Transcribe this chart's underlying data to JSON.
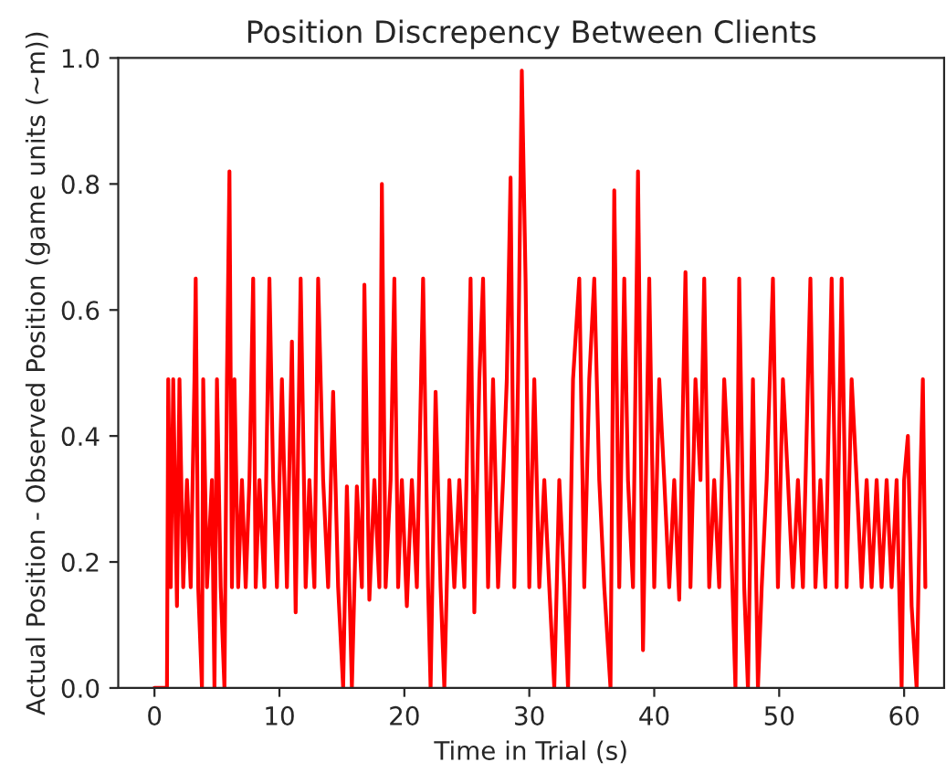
{
  "chart_data": {
    "type": "line",
    "title": "Position Discrepency Between Clients",
    "xlabel": "Time in Trial (s)",
    "ylabel": "Actual Position - Observed Position (game units (~m))",
    "xlim": [
      -2.9,
      63.2
    ],
    "ylim": [
      0,
      1.0
    ],
    "xticks": [
      0,
      10,
      20,
      30,
      40,
      50,
      60
    ],
    "yticks": [
      {
        "value": 0,
        "label": "0.0"
      },
      0.2,
      0.4,
      0.6,
      0.8,
      {
        "value": 1.0,
        "label": "1.0"
      }
    ],
    "grid": false,
    "legend": false,
    "marker": "none",
    "line_style": "solid",
    "series": [
      {
        "color": "#ff0000",
        "x": [
          0,
          1.0,
          1.1,
          1.3,
          1.5,
          1.8,
          2.0,
          2.3,
          2.6,
          2.9,
          3.2,
          3.3,
          3.5,
          3.8,
          3.9,
          4.2,
          4.6,
          4.8,
          5.0,
          5.3,
          5.6,
          5.8,
          6.0,
          6.2,
          6.4,
          6.7,
          7.0,
          7.3,
          7.6,
          7.9,
          8.1,
          8.4,
          8.8,
          9.2,
          9.5,
          9.8,
          10.2,
          10.6,
          11.0,
          11.3,
          11.7,
          12.1,
          12.4,
          12.8,
          13.1,
          13.5,
          13.9,
          14.3,
          14.7,
          15.1,
          15.4,
          15.8,
          16.2,
          16.6,
          16.8,
          17.2,
          17.6,
          18.0,
          18.2,
          18.5,
          18.9,
          19.2,
          19.5,
          19.8,
          20.2,
          20.6,
          21.0,
          21.5,
          21.9,
          22.1,
          22.5,
          22.9,
          23.2,
          23.6,
          24.0,
          24.4,
          24.8,
          25.3,
          25.6,
          26.0,
          26.3,
          26.7,
          27.1,
          27.5,
          27.9,
          28.2,
          28.5,
          28.8,
          29.1,
          29.4,
          29.7,
          30.0,
          30.4,
          30.8,
          31.2,
          31.6,
          32.0,
          32.4,
          32.8,
          33.1,
          33.5,
          34.0,
          34.4,
          34.8,
          35.2,
          35.6,
          36.0,
          36.5,
          36.8,
          37.2,
          37.6,
          37.9,
          38.3,
          38.7,
          39.1,
          39.6,
          40.0,
          40.4,
          40.8,
          41.2,
          41.6,
          42.0,
          42.5,
          42.9,
          43.3,
          43.7,
          44.0,
          44.4,
          44.8,
          45.2,
          45.6,
          46.0,
          46.5,
          46.8,
          47.2,
          47.5,
          47.9,
          48.3,
          48.6,
          49.0,
          49.5,
          49.9,
          50.3,
          50.7,
          51.1,
          51.5,
          51.9,
          52.5,
          52.9,
          53.3,
          53.7,
          54.2,
          54.6,
          55.0,
          55.4,
          55.8,
          56.2,
          56.6,
          57.0,
          57.4,
          57.8,
          58.2,
          58.6,
          59.0,
          59.4,
          59.8,
          60.0,
          60.3,
          60.6,
          61.0,
          61.3,
          61.5,
          61.7
        ],
        "values": [
          0,
          0,
          0.49,
          0.16,
          0.49,
          0.13,
          0.49,
          0.16,
          0.33,
          0.16,
          0.49,
          0.65,
          0.16,
          0,
          0.49,
          0.16,
          0.33,
          0,
          0.49,
          0.16,
          0,
          0.49,
          0.82,
          0.16,
          0.49,
          0.16,
          0.33,
          0.16,
          0.33,
          0.65,
          0.16,
          0.33,
          0.16,
          0.65,
          0.33,
          0.16,
          0.49,
          0.16,
          0.55,
          0.12,
          0.65,
          0.16,
          0.33,
          0.16,
          0.65,
          0.33,
          0.16,
          0.47,
          0.16,
          0,
          0.32,
          0,
          0.32,
          0.16,
          0.64,
          0.14,
          0.33,
          0.16,
          0.8,
          0.16,
          0.33,
          0.65,
          0.16,
          0.33,
          0.13,
          0.33,
          0.16,
          0.65,
          0.16,
          0,
          0.47,
          0.16,
          0,
          0.33,
          0.16,
          0.33,
          0.16,
          0.65,
          0.12,
          0.49,
          0.65,
          0.16,
          0.49,
          0.16,
          0.33,
          0.49,
          0.81,
          0.16,
          0.49,
          0.98,
          0.65,
          0.16,
          0.49,
          0.16,
          0.33,
          0.16,
          0,
          0.33,
          0.16,
          0,
          0.49,
          0.65,
          0.16,
          0.49,
          0.65,
          0.33,
          0.16,
          0,
          0.79,
          0.16,
          0.65,
          0.33,
          0.16,
          0.82,
          0.06,
          0.65,
          0.16,
          0.49,
          0.33,
          0.16,
          0.33,
          0.14,
          0.66,
          0.16,
          0.49,
          0.33,
          0.65,
          0.16,
          0.33,
          0.16,
          0.49,
          0.33,
          0,
          0.65,
          0.16,
          0,
          0.49,
          0,
          0.16,
          0.33,
          0.65,
          0.16,
          0.49,
          0.33,
          0.16,
          0.33,
          0.16,
          0.65,
          0.16,
          0.33,
          0.16,
          0.65,
          0.16,
          0.65,
          0.16,
          0.49,
          0.33,
          0.16,
          0.33,
          0.16,
          0.33,
          0.16,
          0.33,
          0.16,
          0.33,
          0,
          0.33,
          0.4,
          0.13,
          0,
          0.33,
          0.49,
          0.16
        ]
      }
    ]
  }
}
